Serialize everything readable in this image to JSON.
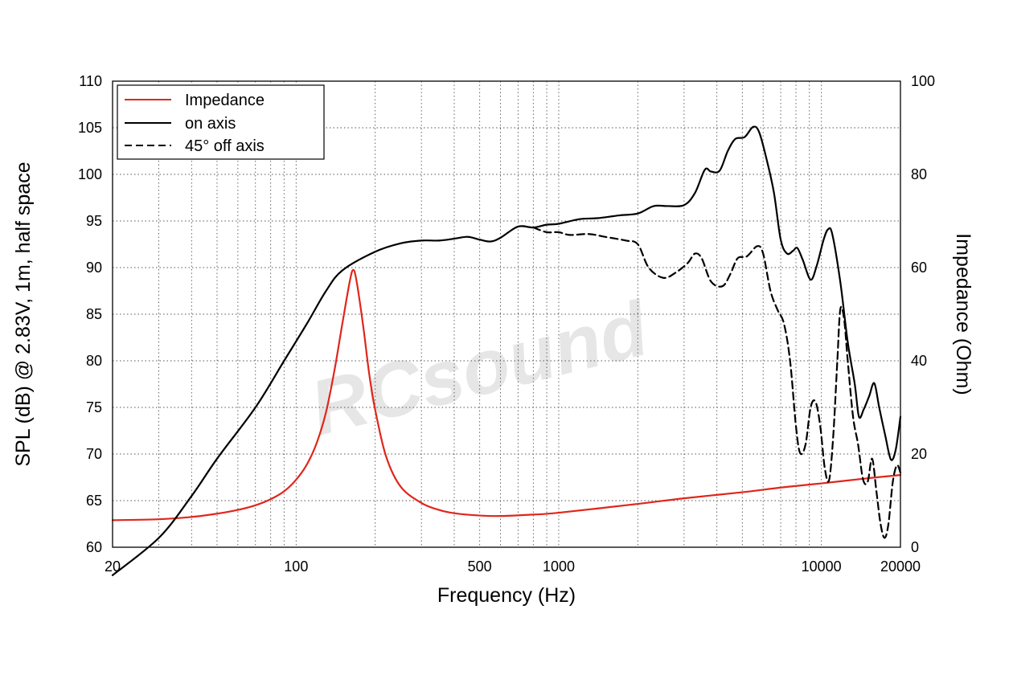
{
  "chart_data": {
    "type": "line",
    "watermark": "RCsound",
    "xlabel": "Frequency (Hz)",
    "ylabel": "SPL (dB) @ 2.83V, 1m, half space",
    "y2label": "Impedance (Ohm)",
    "xscale": "log",
    "xlim": [
      20,
      20000
    ],
    "ylim": [
      60,
      110
    ],
    "y2lim": [
      0,
      100
    ],
    "grid": true,
    "legend_position": "top-left",
    "x_ticks": [
      "20",
      "100",
      "500",
      "1000",
      "10000",
      "20000"
    ],
    "y_ticks": [
      "60",
      "65",
      "70",
      "75",
      "80",
      "85",
      "90",
      "95",
      "100",
      "105",
      "110"
    ],
    "y2_ticks": [
      "0",
      "20",
      "40",
      "60",
      "80",
      "100"
    ],
    "series": [
      {
        "name": "Impedance",
        "axis": "right",
        "color": "#e0261b",
        "dash": "solid",
        "points": [
          [
            20,
            5.8
          ],
          [
            30,
            6.0
          ],
          [
            40,
            6.5
          ],
          [
            50,
            7.2
          ],
          [
            60,
            8.0
          ],
          [
            70,
            9.0
          ],
          [
            80,
            10.3
          ],
          [
            90,
            12.0
          ],
          [
            100,
            14.5
          ],
          [
            110,
            17.8
          ],
          [
            120,
            22.5
          ],
          [
            130,
            29.0
          ],
          [
            140,
            38.0
          ],
          [
            150,
            48.0
          ],
          [
            160,
            57.0
          ],
          [
            165,
            59.5
          ],
          [
            170,
            57.0
          ],
          [
            180,
            47.5
          ],
          [
            190,
            37.0
          ],
          [
            200,
            29.5
          ],
          [
            220,
            19.5
          ],
          [
            250,
            13.0
          ],
          [
            300,
            9.5
          ],
          [
            350,
            8.0
          ],
          [
            400,
            7.3
          ],
          [
            500,
            6.8
          ],
          [
            600,
            6.7
          ],
          [
            800,
            7.0
          ],
          [
            1000,
            7.4
          ],
          [
            2000,
            9.3
          ],
          [
            3000,
            10.5
          ],
          [
            5000,
            11.8
          ],
          [
            7000,
            12.8
          ],
          [
            10000,
            13.7
          ],
          [
            15000,
            14.8
          ],
          [
            20000,
            15.5
          ]
        ]
      },
      {
        "name": "on axis",
        "axis": "left",
        "color": "#000000",
        "dash": "solid",
        "points": [
          [
            20,
            57.0
          ],
          [
            30,
            61.0
          ],
          [
            40,
            65.5
          ],
          [
            50,
            69.5
          ],
          [
            70,
            75.0
          ],
          [
            90,
            80.0
          ],
          [
            110,
            84.0
          ],
          [
            130,
            87.5
          ],
          [
            150,
            89.7
          ],
          [
            200,
            91.7
          ],
          [
            250,
            92.6
          ],
          [
            300,
            92.9
          ],
          [
            350,
            92.9
          ],
          [
            400,
            93.1
          ],
          [
            450,
            93.3
          ],
          [
            500,
            93.0
          ],
          [
            550,
            92.8
          ],
          [
            600,
            93.2
          ],
          [
            700,
            94.4
          ],
          [
            800,
            94.3
          ],
          [
            900,
            94.6
          ],
          [
            1000,
            94.7
          ],
          [
            1200,
            95.2
          ],
          [
            1400,
            95.3
          ],
          [
            1700,
            95.6
          ],
          [
            2000,
            95.8
          ],
          [
            2300,
            96.6
          ],
          [
            2600,
            96.6
          ],
          [
            3000,
            96.7
          ],
          [
            3300,
            98.0
          ],
          [
            3600,
            100.5
          ],
          [
            3800,
            100.3
          ],
          [
            4100,
            100.4
          ],
          [
            4400,
            102.5
          ],
          [
            4700,
            103.8
          ],
          [
            5100,
            104.0
          ],
          [
            5500,
            105.1
          ],
          [
            5800,
            104.5
          ],
          [
            6200,
            101.5
          ],
          [
            6600,
            98.0
          ],
          [
            7000,
            93.0
          ],
          [
            7400,
            91.5
          ],
          [
            7800,
            91.8
          ],
          [
            8100,
            92.1
          ],
          [
            8500,
            90.8
          ],
          [
            9100,
            88.7
          ],
          [
            9600,
            90.2
          ],
          [
            10200,
            93.0
          ],
          [
            10600,
            94.1
          ],
          [
            11000,
            93.6
          ],
          [
            11800,
            88.5
          ],
          [
            12600,
            82.0
          ],
          [
            13400,
            77.5
          ],
          [
            13900,
            74.0
          ],
          [
            14500,
            74.8
          ],
          [
            15200,
            76.2
          ],
          [
            15900,
            77.6
          ],
          [
            16600,
            75.0
          ],
          [
            17500,
            72.0
          ],
          [
            18400,
            69.4
          ],
          [
            19200,
            70.5
          ],
          [
            20000,
            74.0
          ]
        ]
      },
      {
        "name": "45° off axis",
        "axis": "left",
        "color": "#000000",
        "dash": "dashed",
        "points": [
          [
            800,
            94.3
          ],
          [
            900,
            93.8
          ],
          [
            1000,
            93.8
          ],
          [
            1100,
            93.5
          ],
          [
            1300,
            93.6
          ],
          [
            1500,
            93.3
          ],
          [
            1800,
            92.9
          ],
          [
            2000,
            92.5
          ],
          [
            2200,
            90.0
          ],
          [
            2500,
            88.9
          ],
          [
            2800,
            89.5
          ],
          [
            3100,
            90.5
          ],
          [
            3300,
            91.5
          ],
          [
            3500,
            91.0
          ],
          [
            3800,
            88.5
          ],
          [
            4200,
            88.0
          ],
          [
            4500,
            89.3
          ],
          [
            4800,
            91.0
          ],
          [
            5200,
            91.2
          ],
          [
            5700,
            92.3
          ],
          [
            6000,
            91.5
          ],
          [
            6400,
            87.5
          ],
          [
            6800,
            85.5
          ],
          [
            7200,
            84.0
          ],
          [
            7600,
            80.0
          ],
          [
            8000,
            73.0
          ],
          [
            8300,
            70.1
          ],
          [
            8700,
            71.0
          ],
          [
            9100,
            75.0
          ],
          [
            9500,
            75.6
          ],
          [
            9900,
            73.0
          ],
          [
            10300,
            68.5
          ],
          [
            10700,
            67.2
          ],
          [
            11100,
            72.0
          ],
          [
            11500,
            80.0
          ],
          [
            11800,
            85.5
          ],
          [
            12200,
            84.5
          ],
          [
            12600,
            80.0
          ],
          [
            13200,
            74.0
          ],
          [
            13800,
            71.0
          ],
          [
            14400,
            67.3
          ],
          [
            15000,
            67.0
          ],
          [
            15600,
            69.5
          ],
          [
            16200,
            66.0
          ],
          [
            16800,
            62.5
          ],
          [
            17400,
            61.0
          ],
          [
            18000,
            62.5
          ],
          [
            18700,
            67.0
          ],
          [
            19400,
            68.8
          ],
          [
            20000,
            68.0
          ]
        ]
      }
    ]
  }
}
